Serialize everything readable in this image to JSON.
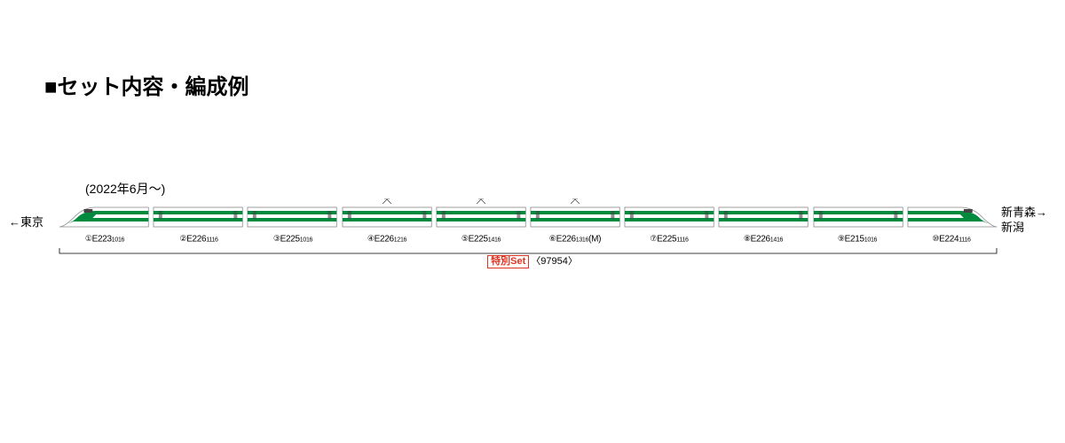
{
  "title": "■セット内容・編成例",
  "date_note": "(2022年6月～)",
  "dest_left": "←東京",
  "dest_right_1": "新青森→",
  "dest_right_2": "新潟",
  "colors": {
    "body": "#ffffff",
    "stripe": "#008a3e",
    "outline": "#888888",
    "window": "#444444",
    "panto": "#333333"
  },
  "cars": [
    {
      "n": "①",
      "type": "E223",
      "sub": "1016",
      "shape": "nose-left",
      "panto": false
    },
    {
      "n": "②",
      "type": "E226",
      "sub": "1116",
      "shape": "mid",
      "panto": false
    },
    {
      "n": "③",
      "type": "E225",
      "sub": "1016",
      "shape": "mid",
      "panto": false
    },
    {
      "n": "④",
      "type": "E226",
      "sub": "1216",
      "shape": "mid",
      "panto": true
    },
    {
      "n": "⑤",
      "type": "E225",
      "sub": "1416",
      "shape": "mid",
      "panto": true
    },
    {
      "n": "⑥",
      "type": "E226",
      "sub": "1316",
      "suffix": "(M)",
      "shape": "mid",
      "panto": true
    },
    {
      "n": "⑦",
      "type": "E225",
      "sub": "1116",
      "shape": "mid",
      "panto": false
    },
    {
      "n": "⑧",
      "type": "E226",
      "sub": "1416",
      "shape": "mid",
      "panto": false
    },
    {
      "n": "⑨",
      "type": "E215",
      "sub": "1016",
      "shape": "mid",
      "panto": false
    },
    {
      "n": "⑩",
      "type": "E224",
      "sub": "1116",
      "shape": "nose-right",
      "panto": false
    }
  ],
  "set_label": "特別Set",
  "set_code": "〈97954〉"
}
